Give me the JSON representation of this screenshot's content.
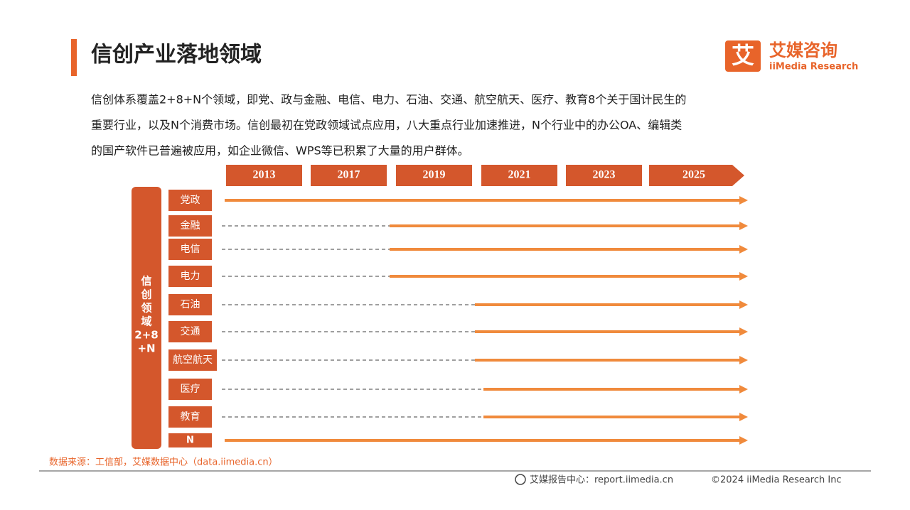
{
  "header": {
    "title": "信创产业落地领域",
    "logo_mark": "艾",
    "logo_name": "艾媒咨询",
    "logo_en": "iiMedia Research"
  },
  "intro": [
    "信创体系覆盖2+8+N个领域，即党、政与金融、电信、电力、石油、交通、航空航天、医疗、教育8个关于国计民生的",
    "重要行业，以及N个消费市场。信创最初在党政领域试点应用，八大重点行业加速推进，N个行业中的办公OA、编辑类",
    "的国产软件已普遍被应用，如企业微信、WPS等已积累了大量的用户群体。"
  ],
  "timeline": {
    "years": [
      "2013",
      "2017",
      "2019",
      "2021",
      "2023",
      "2025"
    ],
    "group_label": [
      "信",
      "创",
      "领",
      "域",
      "2+8",
      "+N"
    ],
    "rows": [
      "党政",
      "金融",
      "电信",
      "电力",
      "石油",
      "交通",
      "航空航天",
      "医疗",
      "教育",
      "N"
    ]
  },
  "footer": {
    "source": "数据来源：工信部，艾媒数据中心（data.iimedia.cn）",
    "report": "艾媒报告中心：report.iimedia.cn",
    "copyright": "©2024  iiMedia Research  Inc"
  }
}
